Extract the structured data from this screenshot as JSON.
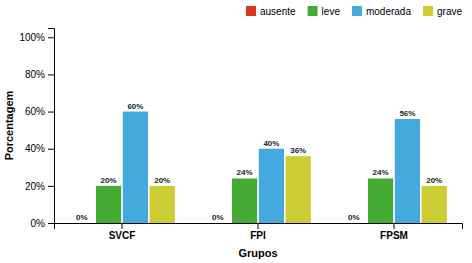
{
  "chart_data": {
    "type": "bar",
    "categories": [
      "SVCF",
      "FPI",
      "FPSM"
    ],
    "series": [
      {
        "name": "ausente",
        "color": "#dd3322",
        "values": [
          0,
          0,
          0
        ],
        "value_labels": [
          "0%",
          "0%",
          "0%"
        ]
      },
      {
        "name": "leve",
        "color": "#44aa33",
        "values": [
          20,
          24,
          24
        ],
        "value_labels": [
          "20%",
          "24%",
          "24%"
        ]
      },
      {
        "name": "moderada",
        "color": "#44aadd",
        "values": [
          60,
          40,
          56
        ],
        "value_labels": [
          "60%",
          "40%",
          "56%"
        ]
      },
      {
        "name": "grave",
        "color": "#cccc33",
        "values": [
          20,
          36,
          20
        ],
        "value_labels": [
          "20%",
          "36%",
          "20%"
        ]
      }
    ],
    "xlabel": "Grupos",
    "ylabel": "Porcentagem",
    "ylim": [
      0,
      105
    ],
    "yticks": [
      {
        "value": 0,
        "label": "0%"
      },
      {
        "value": 20,
        "label": "20%"
      },
      {
        "value": 40,
        "label": "40%"
      },
      {
        "value": 60,
        "label": "60%"
      },
      {
        "value": 80,
        "label": "80%"
      },
      {
        "value": 100,
        "label": "100%"
      }
    ],
    "grid": false,
    "legend": "top-right",
    "data_labels": true
  }
}
